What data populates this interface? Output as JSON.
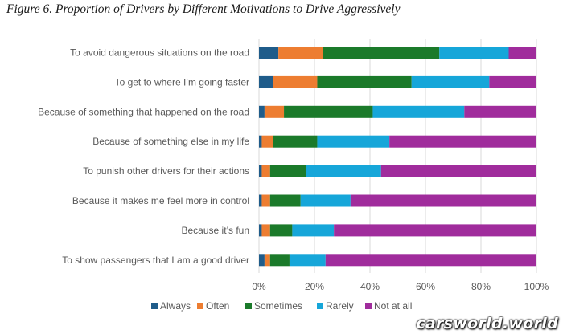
{
  "figure_title": "Figure 6. Proportion of Drivers by Different Motivations to Drive Aggressively",
  "watermark": "carsworld.world",
  "colors": {
    "Always": "#1f5c8a",
    "Often": "#ed7d31",
    "Sometimes": "#1b7a2a",
    "Rarely": "#16a6d9",
    "Not at all": "#a02c9c",
    "grid": "#d9d9d9",
    "text": "#595959"
  },
  "chart_data": {
    "type": "bar",
    "orientation": "horizontal",
    "stacked": true,
    "categories": [
      "To avoid dangerous situations on the road",
      "To get to where I’m going faster",
      "Because of something that happened on the road",
      "Because of something else in my life",
      "To punish other drivers for their actions",
      "Because it makes me feel more in control",
      "Because it’s fun",
      "To show passengers that I am a good driver"
    ],
    "series": [
      {
        "name": "Always",
        "values": [
          7,
          5,
          2,
          1,
          1,
          1,
          1,
          2
        ]
      },
      {
        "name": "Often",
        "values": [
          16,
          16,
          7,
          4,
          3,
          3,
          3,
          2
        ]
      },
      {
        "name": "Sometimes",
        "values": [
          42,
          34,
          32,
          16,
          13,
          11,
          8,
          7
        ]
      },
      {
        "name": "Rarely",
        "values": [
          25,
          28,
          33,
          26,
          27,
          18,
          15,
          13
        ]
      },
      {
        "name": "Not at all",
        "values": [
          10,
          17,
          26,
          53,
          56,
          67,
          73,
          76
        ]
      }
    ],
    "x_ticks": [
      "0%",
      "20%",
      "40%",
      "60%",
      "80%",
      "100%"
    ],
    "xlim": [
      0,
      100
    ],
    "grid": true,
    "legend_position": "bottom"
  }
}
